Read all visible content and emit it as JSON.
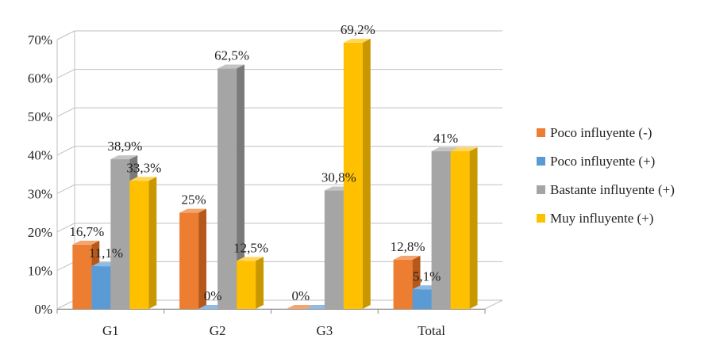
{
  "chart_data": {
    "type": "bar",
    "style": "3d-clustered-column",
    "categories": [
      "G1",
      "G2",
      "G3",
      "Total"
    ],
    "series": [
      {
        "name": "Poco influyente (-)",
        "color": "#ED7D31",
        "side_color": "#B5581A",
        "top_color": "#F4A46E",
        "values": [
          16.7,
          25,
          0,
          12.8
        ],
        "labels": [
          "16,7%",
          "25%",
          "0%",
          "12,8%"
        ]
      },
      {
        "name": "Poco influyente (+)",
        "color": "#5B9BD5",
        "side_color": "#2E6FAA",
        "top_color": "#8DBBE5",
        "values": [
          11.1,
          0,
          0,
          5.1
        ],
        "labels": [
          "11,1%",
          "0%",
          "",
          "5,1%"
        ]
      },
      {
        "name": "Bastante influyente (+)",
        "color": "#A5A5A5",
        "side_color": "#7A7A7A",
        "top_color": "#C4C4C4",
        "values": [
          38.9,
          62.5,
          30.8,
          41
        ],
        "labels": [
          "38,9%",
          "62,5%",
          "30,8%",
          "41%"
        ]
      },
      {
        "name": "Muy influyente (+)",
        "color": "#FFC000",
        "side_color": "#C99700",
        "top_color": "#FFD65C",
        "values": [
          33.3,
          12.5,
          69.2,
          41
        ],
        "labels": [
          "33,3%",
          "12,5%",
          "69,2%",
          ""
        ]
      }
    ],
    "y_ticks": [
      "0%",
      "10%",
      "20%",
      "30%",
      "40%",
      "50%",
      "60%",
      "70%"
    ],
    "ylim": [
      0,
      70
    ],
    "grid": true,
    "legend_position": "right"
  }
}
